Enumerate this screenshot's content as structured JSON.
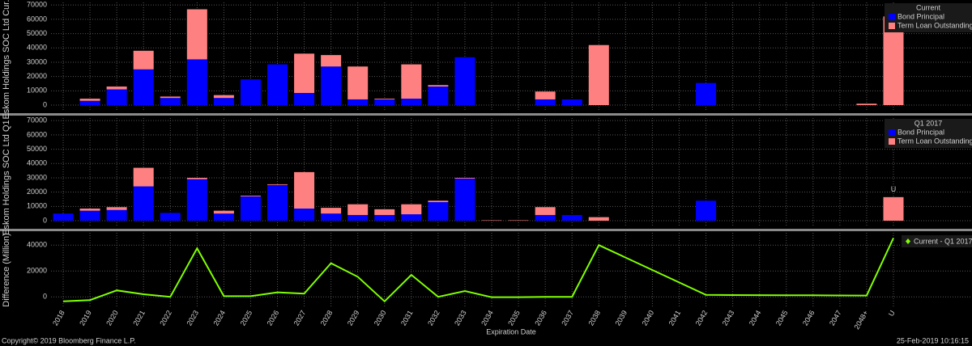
{
  "chart_data": [
    {
      "type": "bar",
      "stacked": true,
      "y_label": "Eskom Holdings SOC Ltd Cur...",
      "legend_title": "Current",
      "legend": "top-right",
      "grid": true,
      "annotation": "U",
      "ylim": [
        -4500,
        71800
      ],
      "yticks": [
        0,
        10000,
        20000,
        30000,
        40000,
        50000,
        60000,
        70000
      ],
      "series": [
        {
          "name": "Bond Principal",
          "color": "#0000ff",
          "values": [
            0,
            3000,
            11000,
            25000,
            5000,
            32000,
            5000,
            18000,
            28500,
            8500,
            27000,
            4000,
            4000,
            4500,
            13000,
            33500,
            0,
            0,
            4000,
            4000,
            0,
            0,
            0,
            0,
            15500,
            0,
            0,
            0,
            0,
            0,
            0,
            0
          ]
        },
        {
          "name": "Term Loan Outstanding",
          "color": "#ff8080",
          "values": [
            0,
            1500,
            2000,
            13000,
            1000,
            35000,
            2000,
            0,
            0,
            27500,
            8000,
            23000,
            500,
            24000,
            1000,
            0,
            0,
            0,
            5500,
            0,
            42000,
            0,
            0,
            0,
            0,
            0,
            0,
            0,
            0,
            0,
            1000,
            62000
          ]
        }
      ]
    },
    {
      "type": "bar",
      "stacked": true,
      "y_label": "Eskom Holdings SOC Ltd Q1 ...",
      "legend_title": "Q1 2017",
      "legend": "top-right",
      "grid": true,
      "annotation": "U",
      "ylim": [
        -4500,
        71800
      ],
      "yticks": [
        0,
        10000,
        20000,
        30000,
        40000,
        50000,
        60000,
        70000
      ],
      "series": [
        {
          "name": "Bond Principal",
          "color": "#0000ff",
          "values": [
            5000,
            7000,
            7500,
            24000,
            5500,
            29000,
            5000,
            17000,
            25000,
            8500,
            5000,
            4000,
            4000,
            4500,
            13000,
            29500,
            0,
            0,
            4000,
            4000,
            0,
            0,
            0,
            0,
            14000,
            0,
            0,
            0,
            0,
            0,
            0,
            0
          ]
        },
        {
          "name": "Term Loan Outstanding",
          "color": "#ff8080",
          "values": [
            0,
            1500,
            2000,
            13000,
            0,
            1000,
            2000,
            500,
            500,
            25500,
            4000,
            7500,
            4000,
            7000,
            1000,
            500,
            300,
            300,
            5500,
            0,
            2500,
            0,
            0,
            0,
            0,
            0,
            0,
            0,
            0,
            0,
            0,
            16500
          ]
        }
      ]
    },
    {
      "type": "line",
      "y_label": "Difference (Million)",
      "x_label": "Expiration Date",
      "legend": "top-right",
      "grid": true,
      "categories": [
        "2018",
        "2019",
        "2020",
        "2021",
        "2022",
        "2023",
        "2024",
        "2025",
        "2026",
        "2027",
        "2028",
        "2029",
        "2030",
        "2031",
        "2032",
        "2033",
        "2034",
        "2035",
        "2036",
        "2037",
        "2038",
        "2039",
        "2040",
        "2041",
        "2042",
        "2043",
        "2044",
        "2045",
        "2046",
        "2047",
        "2048+",
        "U"
      ],
      "ylim": [
        -8000,
        49500
      ],
      "yticks": [
        0,
        20000,
        40000
      ],
      "series": [
        {
          "name": "Current - Q1 2017",
          "color": "#80ff00",
          "values": [
            -3500,
            -2500,
            5000,
            2000,
            0,
            37500,
            500,
            500,
            3500,
            2500,
            26000,
            15500,
            -3500,
            17000,
            0,
            4500,
            -300,
            -300,
            0,
            0,
            40000,
            30375,
            20750,
            11125,
            1500,
            1400,
            1300,
            1200,
            1200,
            1100,
            1000,
            45500
          ]
        }
      ]
    }
  ],
  "footer": {
    "copyright": "Copyright© 2019 Bloomberg Finance L.P.",
    "timestamp": "25-Feb-2019 10:16:15"
  }
}
